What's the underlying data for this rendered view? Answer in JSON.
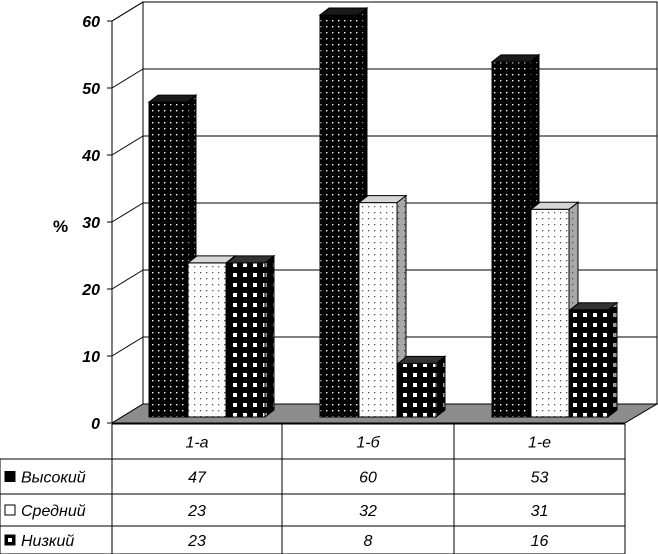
{
  "chart_data": {
    "type": "bar",
    "ylabel": "%",
    "ylim": [
      0,
      60
    ],
    "yticks": [
      "0",
      "10",
      "20",
      "30",
      "40",
      "50",
      "60"
    ],
    "categories": [
      "1-а",
      "1-б",
      "1-е"
    ],
    "series": [
      {
        "name": "Высокий",
        "values": [
          47,
          60,
          53
        ],
        "color": "#000000"
      },
      {
        "name": "Средний",
        "values": [
          23,
          32,
          31
        ],
        "color": "#ffffff"
      },
      {
        "name": "Низкий",
        "values": [
          23,
          8,
          16
        ],
        "color": "#000000"
      }
    ],
    "value_labels": [
      [
        "47",
        "60",
        "53"
      ],
      [
        "23",
        "32",
        "31"
      ],
      [
        "23",
        "8",
        "16"
      ]
    ],
    "grid": true,
    "legend": "data-table-below"
  }
}
